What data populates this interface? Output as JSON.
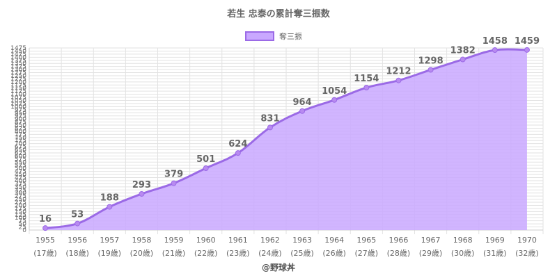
{
  "chart_data": {
    "type": "area",
    "title": "若生 忠泰の累計奪三振数",
    "legend": {
      "label": "奪三振",
      "position": "top"
    },
    "x": [
      "1955",
      "1956",
      "1957",
      "1958",
      "1959",
      "1960",
      "1961",
      "1962",
      "1963",
      "1964",
      "1965",
      "1966",
      "1967",
      "1968",
      "1969",
      "1970"
    ],
    "x_sub": [
      "(17歳)",
      "(18歳)",
      "(19歳)",
      "(20歳)",
      "(21歳)",
      "(22歳)",
      "(23歳)",
      "(24歳)",
      "(25歳)",
      "(26歳)",
      "(27歳)",
      "(28歳)",
      "(29歳)",
      "(30歳)",
      "(31歳)",
      "(32歳)"
    ],
    "series": [
      {
        "name": "奪三振",
        "values": [
          16,
          53,
          188,
          293,
          379,
          501,
          624,
          831,
          964,
          1054,
          1154,
          1212,
          1298,
          1382,
          1458,
          1459
        ]
      }
    ],
    "ylim": [
      0,
      1475
    ],
    "ytick_step": 25,
    "grid": true,
    "colors": {
      "line": "#9b6ae6",
      "fill": "#c9a8ff",
      "point": "#b88af0"
    }
  },
  "credit": "@野球丼"
}
